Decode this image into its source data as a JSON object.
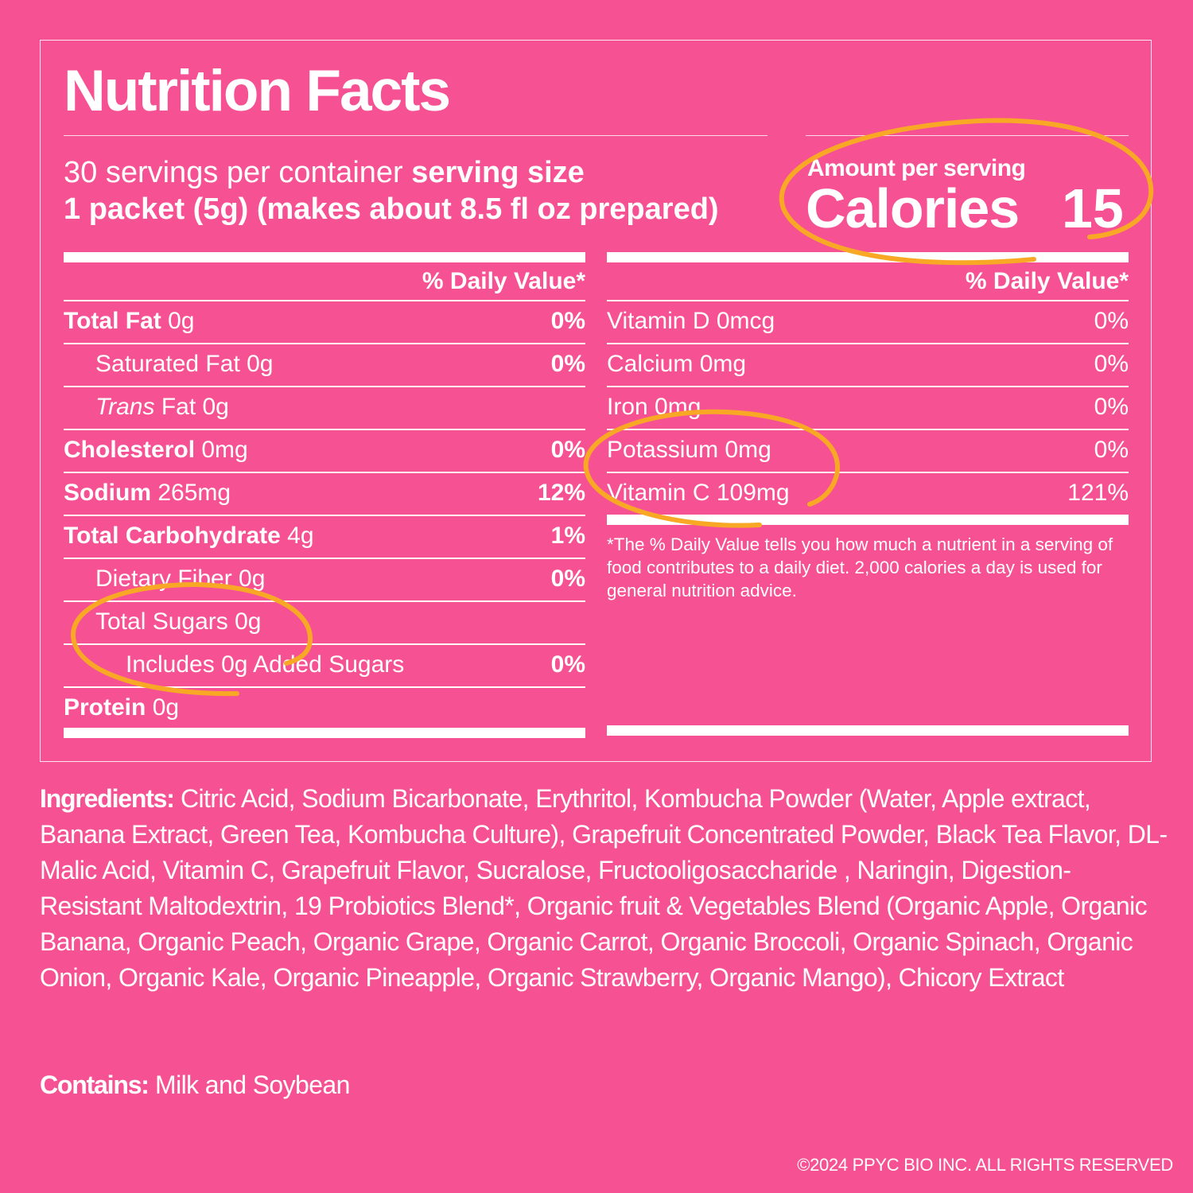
{
  "title": "Nutrition Facts",
  "servings": {
    "per_container": "30 servings per container",
    "size_label": "serving size",
    "size_value": "1 packet (5g) (makes about 8.5 fl oz prepared)"
  },
  "calories": {
    "amount_label": "Amount per serving",
    "label": "Calories",
    "value": "15"
  },
  "dv_header": "% Daily Value*",
  "left_rows": [
    {
      "name": "Total Fat",
      "amount": "0g",
      "pct": "0%"
    },
    {
      "name": "Saturated Fat 0g",
      "pct": "0%"
    },
    {
      "italic": "Trans",
      "rest": "Fat 0g"
    },
    {
      "name": "Cholesterol",
      "amount": "0mg",
      "pct": "0%"
    },
    {
      "name": "Sodium",
      "amount": "265mg",
      "pct": "12%"
    },
    {
      "name": "Total Carbohydrate",
      "amount": "4g",
      "pct": "1%"
    },
    {
      "name": "Dietary Fiber 0g",
      "pct": "0%"
    },
    {
      "name": "Total Sugars 0g"
    },
    {
      "name": "Includes 0g Added Sugars",
      "pct": "0%"
    },
    {
      "name": "Protein",
      "amount": "0g"
    }
  ],
  "right_rows": [
    {
      "name": "Vitamin D 0mcg",
      "pct": "0%"
    },
    {
      "name": "Calcium 0mg",
      "pct": "0%"
    },
    {
      "name": "Iron 0mg",
      "pct": "0%"
    },
    {
      "name": "Potassium 0mg",
      "pct": "0%"
    },
    {
      "name": "Vitamin C 109mg",
      "pct": "121%"
    }
  ],
  "footnote": "*The % Daily Value tells you how much a nutrient in a serving of food contributes to a daily diet. 2,000 calories a day is used for general nutrition advice.",
  "ingredients": {
    "label": "Ingredients:",
    "text": " Citric Acid, Sodium Bicarbonate, Erythritol, Kombucha Powder (Water, Apple extract, Banana Extract, Green Tea, Kombucha Culture), Grapefruit Concentrated Powder, Black Tea Flavor, DL-Malic Acid, Vitamin C, Grapefruit Flavor, Sucralose, Fructooligosaccharide , Naringin, Digestion-Resistant Maltodextrin, 19 Probiotics Blend*, Organic fruit & Vegetables Blend (Organic Apple, Organic Banana, Organic Peach, Organic Grape, Organic Carrot, Organic Broccoli, Organic Spinach, Organic Onion, Organic Kale, Organic Pineapple, Organic Strawberry, Organic Mango), Chicory Extract"
  },
  "contains": {
    "label": "Contains:",
    "text": " Milk and Soybean"
  },
  "copyright": "©2024 PPYC BIO INC. ALL RIGHTS RESERVED",
  "colors": {
    "background": "#F65293",
    "text": "#FFFFFF",
    "highlight": "#F9A826"
  }
}
